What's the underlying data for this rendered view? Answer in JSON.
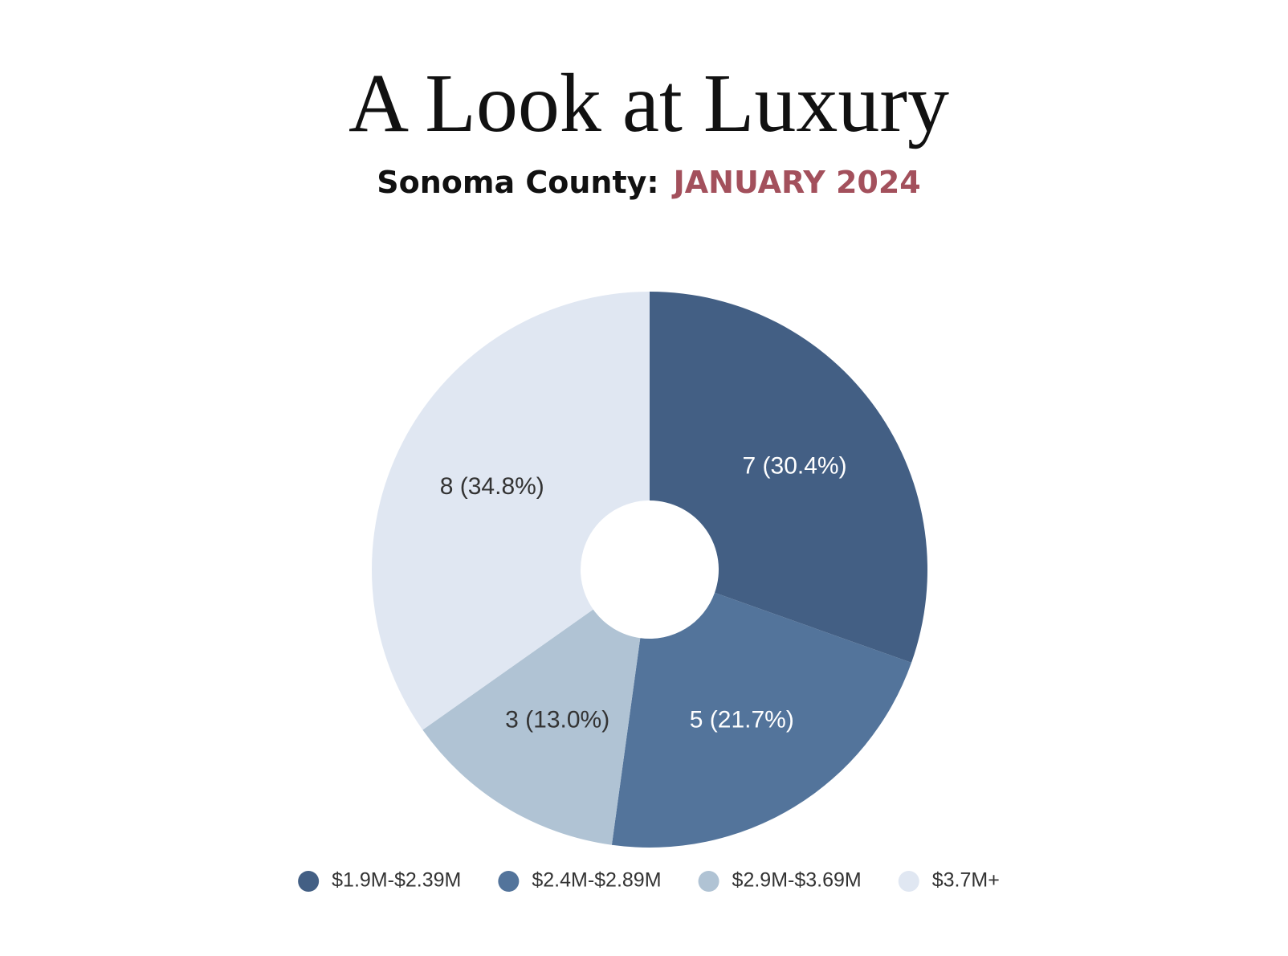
{
  "chart_data": {
    "type": "donut",
    "title": "A Look at Luxury",
    "subtitle": "Sonoma County:",
    "subtitle_highlight": "JANUARY 2024",
    "categories": [
      "$1.9M-$2.39M",
      "$2.4M-$2.89M",
      "$2.9M-$3.69M",
      "$3.7M+"
    ],
    "values": [
      7,
      5,
      3,
      8
    ],
    "value_labels": [
      "7 (30.4%)",
      "5 (21.7%)",
      "3 (13.0%)",
      "8 (34.8%)"
    ],
    "colors": [
      "#435f84",
      "#53749b",
      "#b0c3d4",
      "#e0e7f2"
    ],
    "legend": "bottom"
  }
}
